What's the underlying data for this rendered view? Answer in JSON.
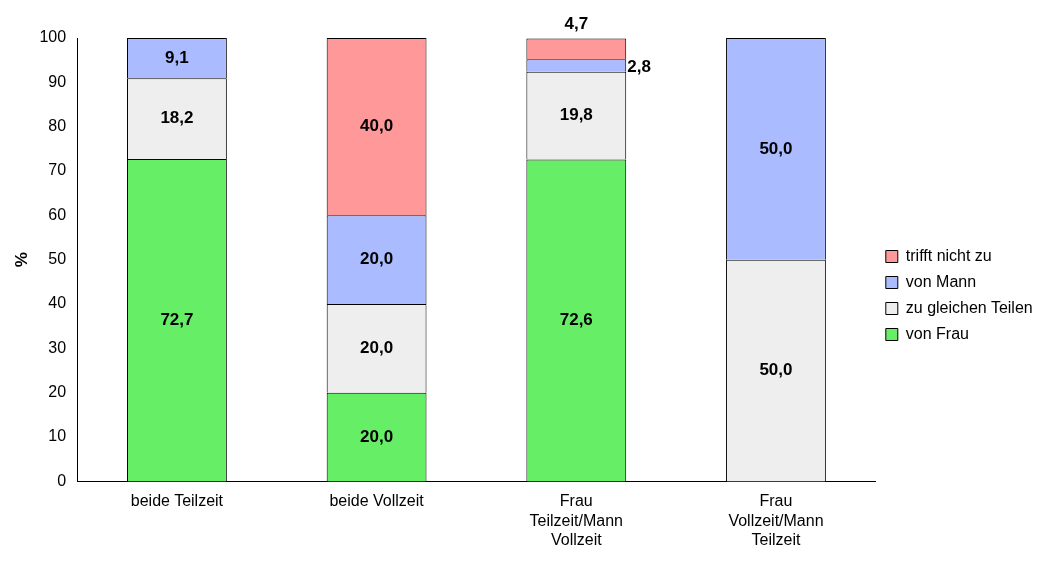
{
  "chart_data": {
    "type": "bar",
    "stacked": true,
    "ylabel": "%",
    "categories": [
      "beide Teilzeit",
      "beide Vollzeit",
      "Frau Teilzeit/Mann Vollzeit",
      "Frau Vollzeit/Mann Teilzeit"
    ],
    "ylim": [
      0,
      100
    ],
    "yticks": [
      0,
      10,
      20,
      30,
      40,
      50,
      60,
      70,
      80,
      90,
      100
    ],
    "grid": false,
    "legend": "right",
    "series": [
      {
        "name": "von Frau",
        "color": "#66ee66",
        "values": [
          72.7,
          20.0,
          72.6,
          null
        ],
        "value_labels": [
          "72,7",
          "20,0",
          "72,6",
          null
        ]
      },
      {
        "name": "zu gleichen Teilen",
        "color": "#eeeeee",
        "values": [
          18.2,
          20.0,
          19.8,
          50.0
        ],
        "value_labels": [
          "18,2",
          "20,0",
          "19,8",
          "50,0"
        ]
      },
      {
        "name": "von Mann",
        "color": "#aabbff",
        "values": [
          9.1,
          20.0,
          2.8,
          50.0
        ],
        "value_labels": [
          "9,1",
          "20,0",
          "2,8",
          "50,0"
        ]
      },
      {
        "name": "trifft nicht zu",
        "color": "#ff9999",
        "values": [
          null,
          40.0,
          4.7,
          null
        ],
        "value_labels": [
          null,
          "40,0",
          "4,7",
          null
        ]
      }
    ]
  }
}
